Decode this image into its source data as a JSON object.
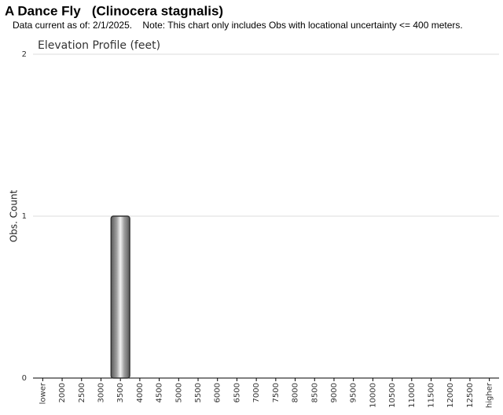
{
  "chart_data": {
    "type": "bar",
    "title": "A Dance Fly   (Clinocera stagnalis)",
    "subtitle": "Data current as of: 2/1/2025.    Note: This chart only includes Obs with locational uncertainty <= 400 meters.",
    "chart_title": "Elevation Profile (feet)",
    "y_label": "Obs. Count",
    "categories": [
      "lower",
      "2000",
      "2500",
      "3000",
      "3500",
      "4000",
      "4500",
      "5000",
      "5500",
      "6000",
      "6500",
      "7000",
      "7500",
      "8000",
      "8500",
      "9000",
      "9500",
      "10000",
      "10500",
      "11000",
      "11500",
      "12000",
      "12500",
      "higher"
    ],
    "values": [
      0,
      0,
      0,
      0,
      1,
      0,
      0,
      0,
      0,
      0,
      0,
      0,
      0,
      0,
      0,
      0,
      0,
      0,
      0,
      0,
      0,
      0,
      0,
      0
    ],
    "color": "#a0a0a0",
    "ylim": [
      0,
      2
    ],
    "yticks": [
      0,
      1,
      2
    ],
    "grid": true
  }
}
